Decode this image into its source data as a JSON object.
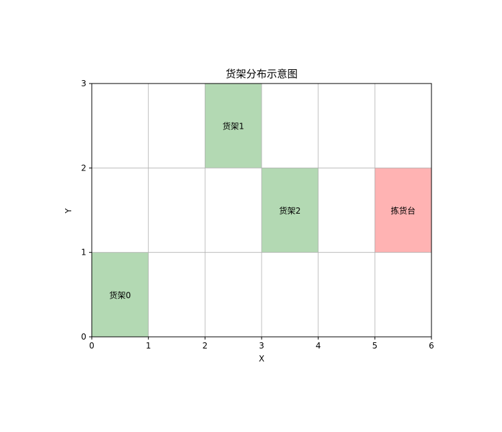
{
  "chart_data": {
    "type": "heatmap",
    "title": "货架分布示意图",
    "xlabel": "X",
    "ylabel": "Y",
    "xlim": [
      0,
      6
    ],
    "ylim": [
      0,
      3
    ],
    "xticks": [
      "0",
      "1",
      "2",
      "3",
      "4",
      "5",
      "6"
    ],
    "yticks": [
      "0",
      "1",
      "2",
      "3"
    ],
    "grid": true,
    "cells": [
      {
        "label": "货架0",
        "x": 0,
        "y": 0,
        "w": 1,
        "h": 1,
        "color": "#b3d9b3"
      },
      {
        "label": "货架1",
        "x": 2,
        "y": 2,
        "w": 1,
        "h": 1,
        "color": "#b3d9b3"
      },
      {
        "label": "货架2",
        "x": 3,
        "y": 1,
        "w": 1,
        "h": 1,
        "color": "#b3d9b3"
      },
      {
        "label": "拣货台",
        "x": 5,
        "y": 1,
        "w": 1,
        "h": 1,
        "color": "#ffb3b3"
      }
    ]
  }
}
